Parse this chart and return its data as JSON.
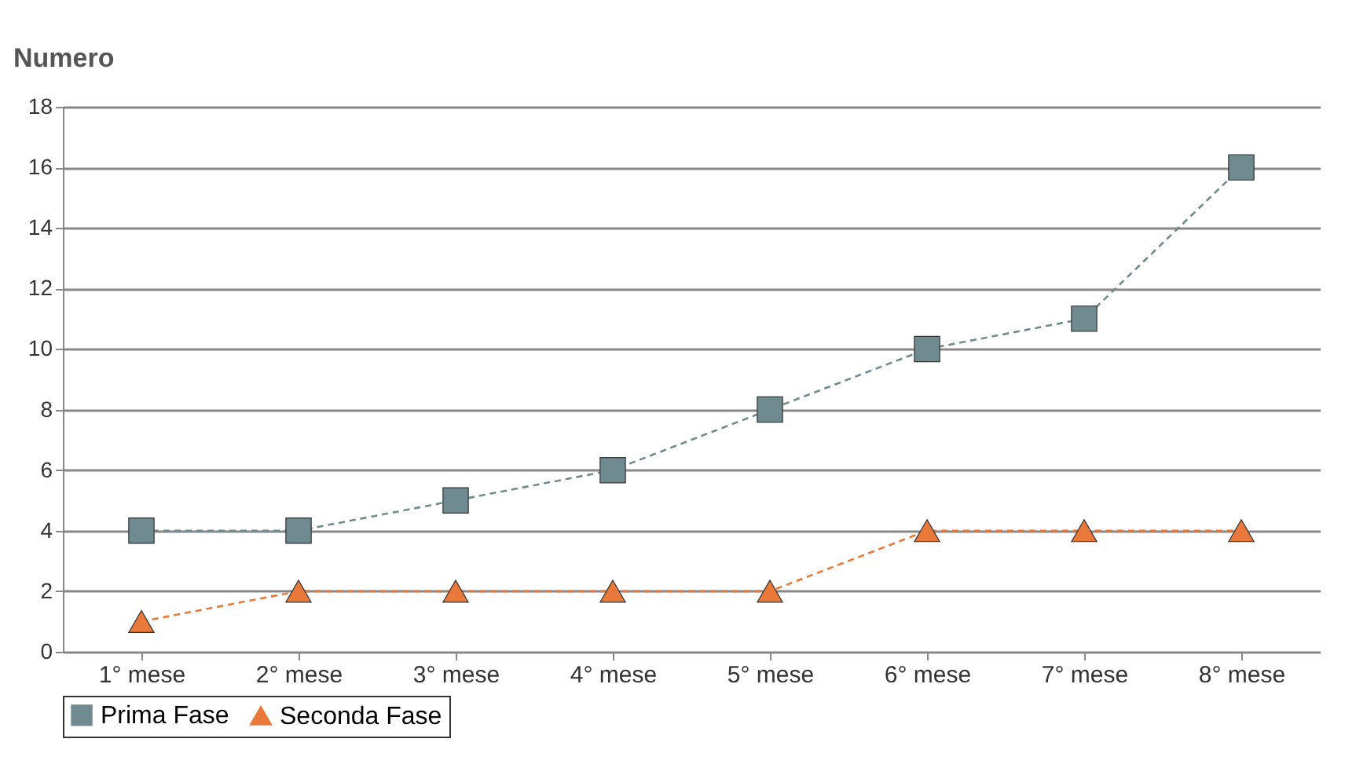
{
  "chart_data": {
    "type": "line",
    "ylabel": "Numero",
    "categories": [
      "1° mese",
      "2° mese",
      "3° mese",
      "4° mese",
      "5° mese",
      "6° mese",
      "7° mese",
      "8° mese"
    ],
    "series": [
      {
        "name": "Prima Fase",
        "color": "#6f8b90",
        "marker": "square",
        "values": [
          4,
          4,
          5,
          6,
          8,
          10,
          11,
          16
        ]
      },
      {
        "name": "Seconda Fase",
        "color": "#e8793a",
        "marker": "triangle",
        "values": [
          1,
          2,
          2,
          2,
          2,
          4,
          4,
          4
        ]
      }
    ],
    "ylim": [
      0,
      18
    ],
    "yticks": [
      0,
      2,
      4,
      6,
      8,
      10,
      12,
      14,
      16,
      18
    ],
    "grid": "y",
    "line_style": "dashed",
    "legend": "bottom left"
  }
}
